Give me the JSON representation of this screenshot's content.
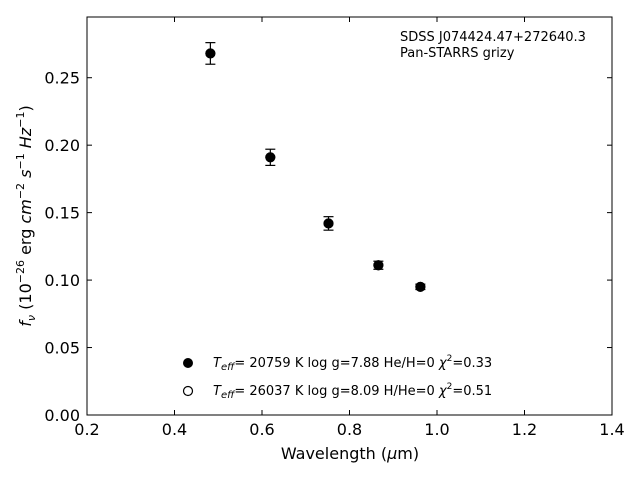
{
  "chart_data": {
    "type": "scatter",
    "title": "",
    "xlabel": "Wavelength (μm)",
    "ylabel": "f_ν (10^-26 erg cm^-2 s^-1 Hz^-1)",
    "xlim": [
      0.2,
      1.4
    ],
    "ylim": [
      0.0,
      0.295
    ],
    "x_ticks": [
      "0.2",
      "0.4",
      "0.6",
      "0.8",
      "1.0",
      "1.2",
      "1.4"
    ],
    "y_ticks": [
      "0.00",
      "0.05",
      "0.10",
      "0.15",
      "0.20",
      "0.25"
    ],
    "grid": false,
    "annotations": [
      "SDSS J074424.47+272640.3",
      "Pan-STARRS grizy"
    ],
    "series": [
      {
        "name": "Teff= 20759 K  log g=7.88  He/H=0  χ²=0.33",
        "marker": "filled-circle",
        "x": [
          0.482,
          0.619,
          0.752,
          0.866,
          0.962
        ],
        "y": [
          0.268,
          0.191,
          0.142,
          0.111,
          0.095
        ],
        "yerr": [
          0.008,
          0.006,
          0.005,
          0.003,
          0.002
        ]
      },
      {
        "name": "Teff= 26037 K  log g=8.09  H/He=0  χ²=0.51",
        "marker": "open-circle",
        "x": [
          0.482,
          0.619,
          0.752,
          0.866,
          0.962
        ],
        "y": [
          0.268,
          0.191,
          0.142,
          0.111,
          0.095
        ]
      }
    ],
    "legend_position": "lower-center"
  },
  "legend": [
    {
      "teff_value": "= 20759 K  log g=7.88  He/H=0  ",
      "chi_value": "=0.33"
    },
    {
      "teff_value": "= 26037 K  log g=8.09  H/He=0  ",
      "chi_value": "=0.51"
    }
  ]
}
